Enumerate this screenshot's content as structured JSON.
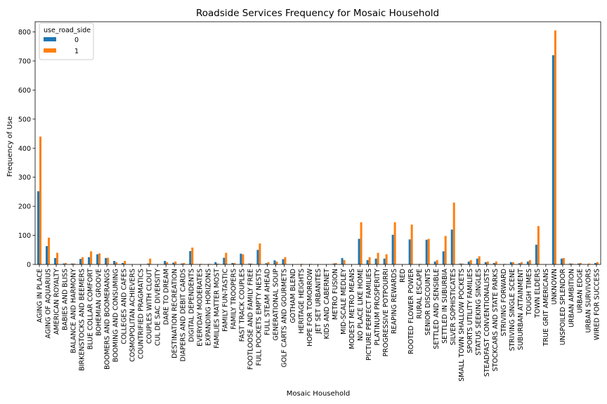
{
  "chart_data": {
    "type": "bar",
    "title": "Roadside Services Frequency for Mosaic Household",
    "xlabel": "Mosaic Household",
    "ylabel": "Frequency of Use",
    "ylim": [
      0,
      835
    ],
    "yticks": [
      0,
      100,
      200,
      300,
      400,
      500,
      600,
      700,
      800
    ],
    "legend": {
      "title": "use_road_side",
      "position": "top-left"
    },
    "colors": {
      "0": "#1f77b4",
      "1": "#ff7f0e"
    },
    "categories": [
      "AGING IN PLACE",
      "AGING OF AQUARIUS",
      "AMERICAN ROYALTY",
      "BABIES AND BLISS",
      "BALANCE AND HARMONY",
      "BIRKENSTOCKS AND BEEMERS",
      "BLUE COLLAR COMFORT",
      "BOHEMIAN GROOVE",
      "BOOMERS AND BOOMERANGS",
      "BOOMING AND CONSUMING",
      "COLLEGES AND CAFES",
      "COSMOPOLITAN ACHIEVERS",
      "COUNTRIFIED PRAGMATICS",
      "COUPLES WITH CLOUT",
      "CUL DE SAC DIVERSITY",
      "DARE TO DREAM",
      "DESTINATION RECREATION",
      "DIAPERS AND DEBIT CARDS",
      "DIGITAL DEPENDENTS",
      "EVERYDAY MODERATES",
      "EXPANDING HORIZONS",
      "FAMILIES MATTER MOST",
      "FAMILY FUN-TASTIC",
      "FAMILY TROOPERS",
      "FAST TRACK COUPLES",
      "FOOTLOOSE AND FAMILY FREE",
      "FULL POCKETS  EMPTY NESTS",
      "FULL STEAM AHEAD",
      "GENERATIONAL SOUP",
      "GOLF CARTS AND GOURMETS",
      "GOTHAM BLEND",
      "HERITAGE HEIGHTS",
      "HOPE FOR TOMORROW",
      "JET SET URBANITES",
      "KIDS AND CABERNET",
      "METRO FUSION",
      "MID-SCALE MEDLEY",
      "MODEST METRO MEANS",
      "NO PLACE LIKE HOME",
      "PICTURE PERFECT FAMILIES",
      "PLATINUM PROSPERITY",
      "PROGRESSIVE POTPOURRI",
      "REAPING REWARDS",
      "RED",
      "ROOTED FLOWER POWER",
      "RURAL ESCAPE",
      "SENIOR DISCOUNTS",
      "SETTLED AND SENSIBLE",
      "SETTLED IN SUBURBIA",
      "SILVER SOPHISTICATES",
      "SMALL TOWN SHALLOW POCKETS",
      "SPORTS UTILITY FAMILIES",
      "STATUS SEEKING SINGLES",
      "STEADFAST CONVENTIONALISTS",
      "STOCKCARS AND STATE PARKS",
      "STRIVING FORWARD",
      "STRIVING SINGLE SCENE",
      "SUBURBAN ATTAINMENT",
      "TOUGH TIMES",
      "TOWN ELDERS",
      "TRUE GRIT AMERICANS",
      "UNKNOWN",
      "UNSPOILED SPLENDOR",
      "URBAN AMBITION",
      "URBAN EDGE",
      "URBAN SURVIVORS",
      "WIRED FOR SUCCESS"
    ],
    "series": [
      {
        "name": "0",
        "values": [
          252,
          63,
          22,
          3,
          3,
          19,
          25,
          35,
          22,
          12,
          5,
          0,
          0,
          3,
          0,
          12,
          6,
          3,
          46,
          0,
          0,
          8,
          23,
          5,
          37,
          3,
          50,
          4,
          14,
          18,
          0,
          0,
          0,
          0,
          0,
          3,
          22,
          0,
          88,
          15,
          20,
          20,
          102,
          0,
          86,
          0,
          85,
          10,
          45,
          120,
          3,
          10,
          20,
          8,
          5,
          0,
          8,
          4,
          10,
          68,
          0,
          720,
          20,
          3,
          3,
          0,
          5
        ]
      },
      {
        "name": "1",
        "values": [
          440,
          92,
          40,
          5,
          3,
          25,
          45,
          38,
          23,
          8,
          12,
          0,
          0,
          20,
          0,
          8,
          10,
          5,
          58,
          2,
          2,
          3,
          40,
          5,
          35,
          3,
          72,
          8,
          10,
          25,
          0,
          2,
          2,
          0,
          0,
          5,
          15,
          0,
          145,
          25,
          40,
          35,
          145,
          0,
          137,
          2,
          88,
          15,
          98,
          213,
          3,
          15,
          28,
          10,
          10,
          2,
          8,
          8,
          15,
          132,
          0,
          805,
          22,
          3,
          5,
          3,
          8
        ]
      }
    ]
  }
}
